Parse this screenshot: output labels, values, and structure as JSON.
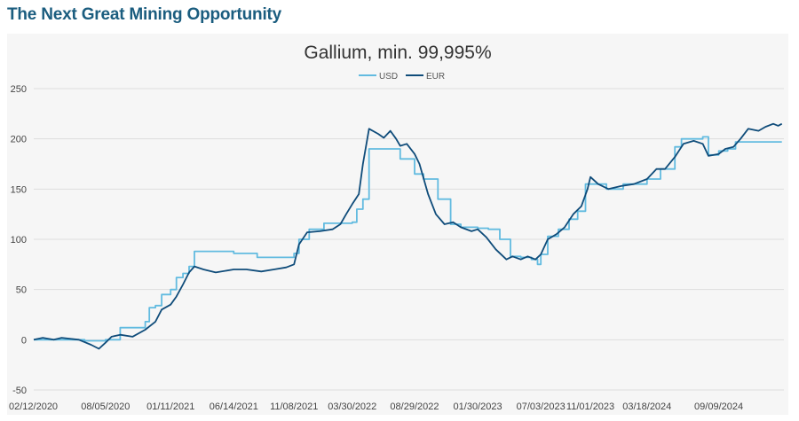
{
  "page": {
    "heading": "The Next Great Mining Opportunity"
  },
  "chart_data": {
    "type": "line",
    "title": "Gallium, min. 99,995%",
    "xlabel": "",
    "ylabel": "",
    "ylim": [
      -50,
      250
    ],
    "yticks": [
      250,
      200,
      150,
      100,
      50,
      0,
      -50
    ],
    "xticks": [
      "02/12/2020",
      "08/05/2020",
      "01/11/2021",
      "06/14/2021",
      "11/08/2021",
      "03/30/2022",
      "08/29/2022",
      "01/30/2023",
      "07/03/2023",
      "11/01/2023",
      "03/18/2024",
      "09/09/2024"
    ],
    "grid": true,
    "legend_placement": "top-center",
    "colors": {
      "USD": "#62bbe0",
      "EUR": "#0f4c7a",
      "grid": "#dddddd"
    },
    "series": [
      {
        "name": "USD",
        "x": [
          "02/12/2020",
          "04/15/2020",
          "06/15/2020",
          "07/20/2020",
          "08/05/2020",
          "09/10/2020",
          "10/15/2020",
          "11/10/2020",
          "11/20/2020",
          "12/05/2020",
          "12/20/2020",
          "01/11/2021",
          "01/25/2021",
          "02/10/2021",
          "02/25/2021",
          "03/10/2021",
          "04/20/2021",
          "06/14/2021",
          "08/10/2021",
          "09/20/2021",
          "11/08/2021",
          "11/20/2021",
          "12/15/2021",
          "01/20/2022",
          "02/25/2022",
          "03/30/2022",
          "04/10/2022",
          "04/25/2022",
          "05/10/2022",
          "07/10/2022",
          "07/25/2022",
          "08/29/2022",
          "09/20/2022",
          "10/25/2022",
          "11/25/2022",
          "12/20/2022",
          "01/30/2023",
          "02/25/2023",
          "03/25/2023",
          "04/20/2023",
          "05/15/2023",
          "06/10/2023",
          "06/25/2023",
          "07/03/2023",
          "07/20/2023",
          "08/15/2023",
          "09/10/2023",
          "10/01/2023",
          "10/20/2023",
          "11/01/2023",
          "12/10/2023",
          "01/20/2024",
          "03/18/2024",
          "04/20/2024",
          "05/25/2024",
          "06/10/2024",
          "07/10/2024",
          "08/01/2024",
          "08/15/2024",
          "09/09/2024",
          "10/01/2024",
          "10/20/2024",
          "11/05/2024",
          "12/01/2024",
          "01/15/2025",
          "02/10/2025"
        ],
        "values": [
          0,
          0,
          -1,
          -1,
          0,
          12,
          12,
          18,
          32,
          34,
          45,
          50,
          62,
          66,
          73,
          88,
          88,
          86,
          82,
          82,
          86,
          100,
          110,
          116,
          116,
          117,
          130,
          140,
          190,
          190,
          180,
          165,
          160,
          140,
          115,
          112,
          111,
          110,
          100,
          83,
          82,
          80,
          75,
          85,
          103,
          110,
          120,
          128,
          155,
          155,
          150,
          155,
          160,
          170,
          192,
          200,
          200,
          202,
          184,
          188,
          190,
          197,
          197,
          197,
          197,
          197
        ]
      },
      {
        "name": "EUR",
        "x": [
          "02/12/2020",
          "03/05/2020",
          "04/01/2020",
          "04/20/2020",
          "06/01/2020",
          "07/01/2020",
          "07/20/2020",
          "08/05/2020",
          "08/20/2020",
          "09/10/2020",
          "10/10/2020",
          "11/10/2020",
          "12/05/2020",
          "12/20/2020",
          "01/11/2021",
          "01/25/2021",
          "02/10/2021",
          "02/25/2021",
          "03/10/2021",
          "04/01/2021",
          "05/01/2021",
          "06/14/2021",
          "07/15/2021",
          "08/20/2021",
          "09/20/2021",
          "10/20/2021",
          "11/08/2021",
          "11/20/2021",
          "12/10/2021",
          "01/10/2022",
          "02/10/2022",
          "03/01/2022",
          "03/15/2022",
          "03/30/2022",
          "04/15/2022",
          "04/25/2022",
          "05/10/2022",
          "06/01/2022",
          "06/15/2022",
          "07/01/2022",
          "07/15/2022",
          "07/25/2022",
          "08/10/2022",
          "08/29/2022",
          "09/10/2022",
          "10/01/2022",
          "10/20/2022",
          "11/10/2022",
          "12/01/2022",
          "12/20/2022",
          "01/15/2023",
          "01/30/2023",
          "02/20/2023",
          "03/15/2023",
          "04/10/2023",
          "04/25/2023",
          "05/15/2023",
          "06/01/2023",
          "06/20/2023",
          "07/03/2023",
          "07/20/2023",
          "08/10/2023",
          "08/30/2023",
          "09/20/2023",
          "10/10/2023",
          "10/25/2023",
          "11/01/2023",
          "11/20/2023",
          "12/15/2023",
          "01/15/2024",
          "02/15/2024",
          "03/18/2024",
          "04/10/2024",
          "05/01/2024",
          "05/25/2024",
          "06/15/2024",
          "07/10/2024",
          "08/01/2024",
          "08/15/2024",
          "09/09/2024",
          "09/25/2024",
          "10/15/2024",
          "11/01/2024",
          "11/20/2024",
          "12/15/2024",
          "01/01/2025",
          "01/20/2025",
          "02/01/2025",
          "02/10/2025"
        ],
        "values": [
          0,
          2,
          0,
          2,
          0,
          -5,
          -9,
          -3,
          3,
          5,
          3,
          10,
          18,
          30,
          35,
          43,
          55,
          67,
          73,
          70,
          67,
          70,
          70,
          68,
          70,
          72,
          75,
          95,
          107,
          108,
          110,
          115,
          125,
          135,
          145,
          175,
          210,
          205,
          201,
          208,
          200,
          193,
          195,
          185,
          175,
          145,
          125,
          115,
          117,
          112,
          108,
          110,
          102,
          90,
          80,
          83,
          80,
          83,
          80,
          85,
          100,
          105,
          112,
          125,
          133,
          150,
          162,
          155,
          150,
          153,
          155,
          160,
          170,
          170,
          182,
          195,
          198,
          195,
          183,
          185,
          190,
          192,
          200,
          210,
          208,
          212,
          215,
          213,
          215
        ]
      }
    ]
  }
}
